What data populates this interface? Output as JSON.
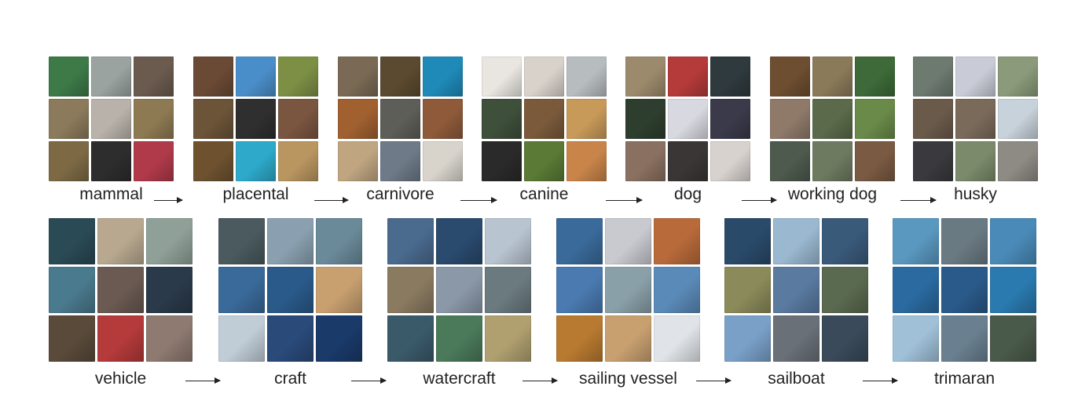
{
  "figure": {
    "rows": [
      {
        "id": "animals",
        "categories": [
          {
            "name": "mammal",
            "tiles": [
              "#3d7a48",
              "#9aa3a0",
              "#6b5a4e",
              "#8b7a5c",
              "#b8b2aa",
              "#8e7a52",
              "#7d6a45",
              "#2d2d2d",
              "#b03a4a"
            ]
          },
          {
            "name": "placental",
            "tiles": [
              "#6b4a35",
              "#4a8ec9",
              "#7d8f45",
              "#6b5438",
              "#2f2f2f",
              "#7a5540",
              "#6e5230",
              "#2ea9c9",
              "#b99660"
            ]
          },
          {
            "name": "carnivore",
            "tiles": [
              "#7a6a55",
              "#5c4a30",
              "#1f8ab8",
              "#a06030",
              "#5e5e58",
              "#8e5a3a",
              "#bfa580",
              "#6e7a88",
              "#d8d4cc"
            ]
          },
          {
            "name": "canine",
            "tiles": [
              "#e9e6e1",
              "#d8d2ca",
              "#b7bcbf",
              "#3e4f3a",
              "#7a5a3a",
              "#c89a5a",
              "#2a2a2a",
              "#5a7a35",
              "#c9844a"
            ]
          },
          {
            "name": "dog",
            "tiles": [
              "#9c8a6c",
              "#b53a3a",
              "#2f3a3e",
              "#2e3e2e",
              "#d8d8e0",
              "#3a3a4a",
              "#8a7060",
              "#3a3636",
              "#d8d2ce"
            ]
          },
          {
            "name": "working dog",
            "tiles": [
              "#6d4e30",
              "#8a7a5a",
              "#3d6a38",
              "#8f7a6a",
              "#5a6a4a",
              "#6a8a4a",
              "#4e5a4e",
              "#6e7a60",
              "#7a5a42"
            ]
          },
          {
            "name": "husky",
            "tiles": [
              "#6d7a70",
              "#c9ccd6",
              "#8a9a7a",
              "#6a5a4a",
              "#7a6a5a",
              "#c8d2da",
              "#3a3a3e",
              "#7a8a6a",
              "#8e8a84"
            ]
          }
        ]
      },
      {
        "id": "vehicles",
        "categories": [
          {
            "name": "vehicle",
            "tiles": [
              "#2a4a55",
              "#b8a890",
              "#8fa098",
              "#4a7a8e",
              "#6a5a52",
              "#2a3a4a",
              "#5a4a3a",
              "#b53a3a",
              "#8e7a70"
            ]
          },
          {
            "name": "craft",
            "tiles": [
              "#4a5a5e",
              "#8aa0b0",
              "#6a8a9a",
              "#3a6a9a",
              "#2a5a8a",
              "#c8a070",
              "#c0ccd6",
              "#2a4a7a",
              "#1a3a6a"
            ]
          },
          {
            "name": "watercraft",
            "tiles": [
              "#4a6a8e",
              "#2a4a6e",
              "#b8c4d0",
              "#8a7a60",
              "#8a98a8",
              "#6a7a7e",
              "#3a5a6a",
              "#4a7a5a",
              "#b0a070"
            ]
          },
          {
            "name": "sailing vessel",
            "tiles": [
              "#3a6a9a",
              "#c8cad0",
              "#b86a3a",
              "#4a7ab0",
              "#8aa0a8",
              "#5a8ab8",
              "#b87a30",
              "#c8a070",
              "#e0e4e8"
            ]
          },
          {
            "name": "sailboat",
            "tiles": [
              "#2a4a6a",
              "#9ab8d0",
              "#3a5a7a",
              "#8a8a5a",
              "#5a7aa0",
              "#5a6a50",
              "#7aa0c8",
              "#6a7078",
              "#3a4a5a"
            ]
          },
          {
            "name": "trimaran",
            "tiles": [
              "#5a98c0",
              "#6a7a82",
              "#4a8ab8",
              "#2a6aa0",
              "#2a5a8a",
              "#2a7ab0",
              "#a0c0d8",
              "#6a8090",
              "#4a5a4a"
            ]
          }
        ]
      }
    ]
  }
}
